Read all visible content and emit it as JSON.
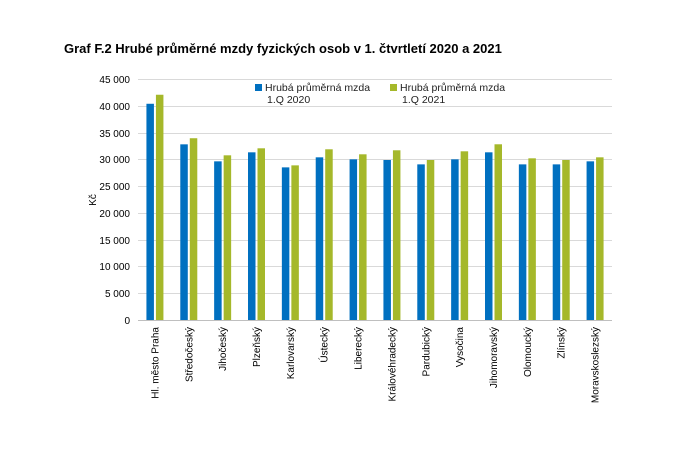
{
  "chart_data": {
    "type": "bar",
    "title": "Graf F.2 Hrubé průměrné mzdy fyzických osob v 1. čtvrtletí 2020 a 2021",
    "xlabel": "",
    "ylabel": "Kč",
    "ylim": [
      0,
      45000
    ],
    "yticks": [
      "0",
      "5 000",
      "10 000",
      "15 000",
      "20 000",
      "25 000",
      "30 000",
      "35 000",
      "40 000",
      "45 000"
    ],
    "grid": true,
    "legend": "top-center",
    "categories": [
      "Hl. město Praha",
      "Středočeský",
      "Jihočeský",
      "Plzeňský",
      "Karlovarský",
      "Ústecký",
      "Liberecký",
      "Královéhradecký",
      "Pardubický",
      "Vysočina",
      "Jihomoravský",
      "Olomoucký",
      "Zlínský",
      "Moravskoslezský"
    ],
    "series": [
      {
        "name": "Hrubá průměrná mzda",
        "name2": "1.Q 2020",
        "color": "#0070c0",
        "values": [
          40375,
          32800,
          29625,
          31310,
          28500,
          30375,
          30000,
          29875,
          29060,
          30000,
          31310,
          29060,
          29060,
          29625
        ]
      },
      {
        "name": "Hrubá průměrná mzda",
        "name2": "1.Q 2021",
        "color": "#a5b82a",
        "values": [
          42060,
          33940,
          30750,
          32060,
          28875,
          31875,
          30940,
          31690,
          29875,
          31500,
          32810,
          30190,
          29875,
          30375
        ]
      }
    ]
  }
}
